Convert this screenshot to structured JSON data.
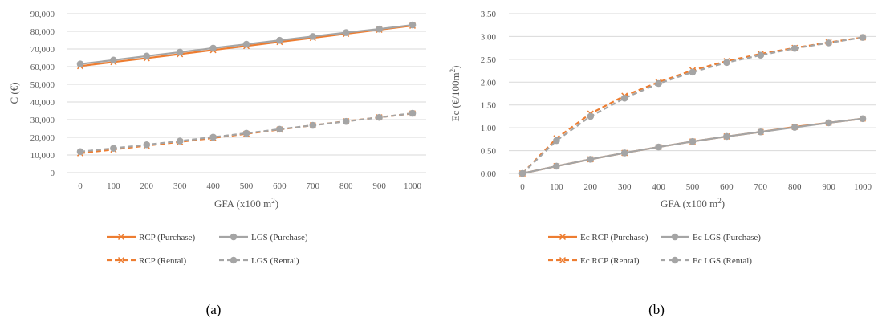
{
  "chart_data": [
    {
      "type": "line",
      "caption": "(a)",
      "xlabel": "GFA (x100 m²)",
      "ylabel": "C (€)",
      "categories": [
        "0",
        "100",
        "200",
        "300",
        "400",
        "500",
        "600",
        "700",
        "800",
        "900",
        "1000"
      ],
      "ylim": [
        0,
        90000
      ],
      "ytick_labels": [
        "0",
        "10,000",
        "20,000",
        "30,000",
        "40,000",
        "50,000",
        "60,000",
        "70,000",
        "80,000",
        "90,000"
      ],
      "grid": true,
      "legend_position": "bottom",
      "series": [
        {
          "name": "RCP (Purchase)",
          "color": "#ED7D31",
          "dash": false,
          "marker": "x",
          "values": [
            60300,
            62600,
            64800,
            67100,
            69400,
            71700,
            74000,
            76300,
            78600,
            80900,
            83200
          ]
        },
        {
          "name": "LGS (Purchase)",
          "color": "#A5A5A5",
          "dash": false,
          "marker": "circle",
          "values": [
            61500,
            63700,
            66000,
            68200,
            70500,
            72700,
            74900,
            77100,
            79300,
            81300,
            83600
          ]
        },
        {
          "name": "RCP (Rental)",
          "color": "#ED7D31",
          "dash": true,
          "marker": "x",
          "values": [
            11000,
            13100,
            15300,
            17400,
            19600,
            22000,
            24400,
            26800,
            29100,
            31300,
            33500
          ]
        },
        {
          "name": "LGS (Rental)",
          "color": "#A5A5A5",
          "dash": true,
          "marker": "circle",
          "values": [
            11900,
            13800,
            15800,
            17900,
            20100,
            22300,
            24600,
            26800,
            29000,
            31300,
            33600
          ]
        }
      ]
    },
    {
      "type": "line",
      "caption": "(b)",
      "xlabel": "GFA (x100 m²)",
      "ylabel": "Ec (€/100m²)",
      "categories": [
        "0",
        "100",
        "200",
        "300",
        "400",
        "500",
        "600",
        "700",
        "800",
        "900",
        "1000"
      ],
      "ylim": [
        0,
        3.5
      ],
      "ytick_labels": [
        "0.00",
        "0.50",
        "1.00",
        "1.50",
        "2.00",
        "2.50",
        "3.00",
        "3.50"
      ],
      "grid": true,
      "legend_position": "bottom",
      "series": [
        {
          "name": "Ec RCP (Purchase)",
          "color": "#ED7D31",
          "dash": false,
          "marker": "x",
          "values": [
            0,
            0.16,
            0.31,
            0.45,
            0.58,
            0.7,
            0.81,
            0.91,
            1.02,
            1.11,
            1.2
          ]
        },
        {
          "name": "Ec LGS (Purchase)",
          "color": "#A5A5A5",
          "dash": false,
          "marker": "circle",
          "values": [
            0,
            0.16,
            0.31,
            0.45,
            0.58,
            0.7,
            0.81,
            0.91,
            1.01,
            1.11,
            1.2
          ]
        },
        {
          "name": "Ec RCP (Rental)",
          "color": "#ED7D31",
          "dash": true,
          "marker": "x",
          "values": [
            0,
            0.77,
            1.31,
            1.7,
            2.0,
            2.26,
            2.46,
            2.62,
            2.75,
            2.87,
            2.98
          ]
        },
        {
          "name": "Ec LGS (Rental)",
          "color": "#A5A5A5",
          "dash": true,
          "marker": "circle",
          "values": [
            0,
            0.72,
            1.25,
            1.65,
            1.97,
            2.22,
            2.43,
            2.59,
            2.74,
            2.86,
            2.98
          ]
        }
      ]
    }
  ]
}
